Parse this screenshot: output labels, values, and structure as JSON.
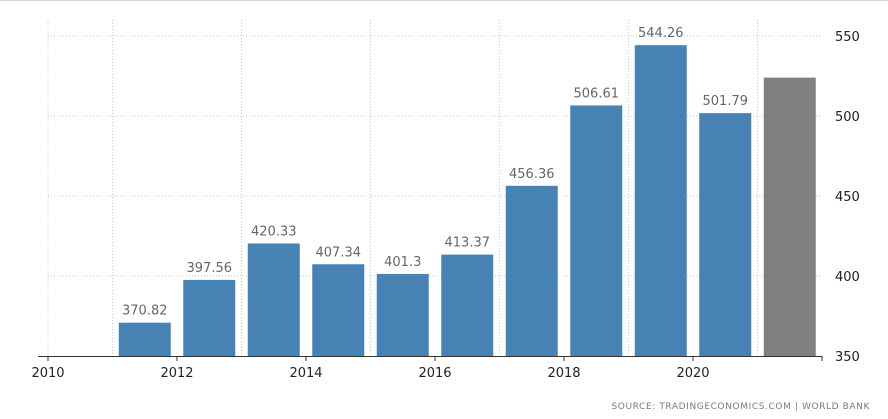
{
  "chart_data": {
    "type": "bar",
    "title": "",
    "xlabel": "",
    "ylabel": "",
    "x": [
      2011,
      2012,
      2013,
      2014,
      2015,
      2016,
      2017,
      2018,
      2019,
      2020,
      2021
    ],
    "values": [
      370.82,
      397.56,
      420.33,
      407.34,
      401.3,
      413.37,
      456.36,
      506.61,
      544.26,
      501.79,
      524.0
    ],
    "data_labels": [
      "370.82",
      "397.56",
      "420.33",
      "407.34",
      "401.3",
      "413.37",
      "456.36",
      "506.61",
      "544.26",
      "501.79",
      ""
    ],
    "x_ticks": [
      "2010",
      "2012",
      "2014",
      "2016",
      "2018",
      "2020"
    ],
    "y_ticks": [
      "350",
      "400",
      "450",
      "500",
      "550"
    ],
    "ylim": [
      350,
      560
    ],
    "xlim": [
      2010,
      2022
    ],
    "grid": true,
    "y_axis_side": "right",
    "colors": {
      "bar": "#4682b4",
      "forecast_bar": "#808080",
      "grid": "#c8c8c8",
      "label": "#666666"
    }
  },
  "source": "SOURCE: TRADINGECONOMICS.COM | WORLD BANK"
}
